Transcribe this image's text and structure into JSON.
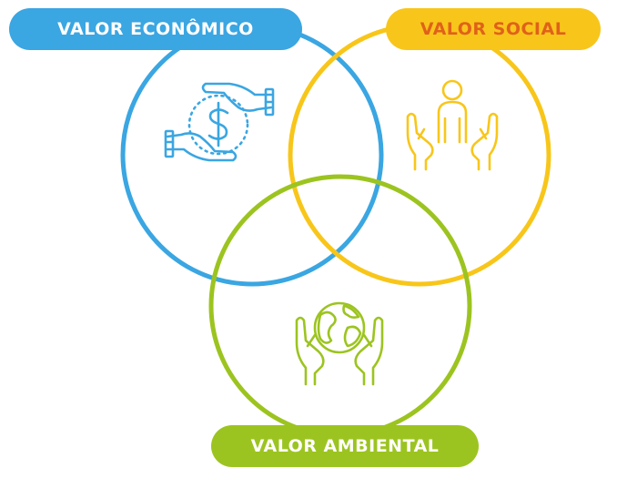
{
  "labels": {
    "economic": "VALOR ECONÔMICO",
    "social": "VALOR SOCIAL",
    "environmental": "VALOR AMBIENTAL"
  },
  "colors": {
    "economic": "#3aa6e2",
    "social": "#f8c61a",
    "social_text": "#e0611a",
    "environmental": "#9cc420"
  },
  "icons": {
    "economic": "hands-exchange-money-icon",
    "social": "hands-supporting-person-icon",
    "environmental": "hands-holding-globe-icon"
  }
}
